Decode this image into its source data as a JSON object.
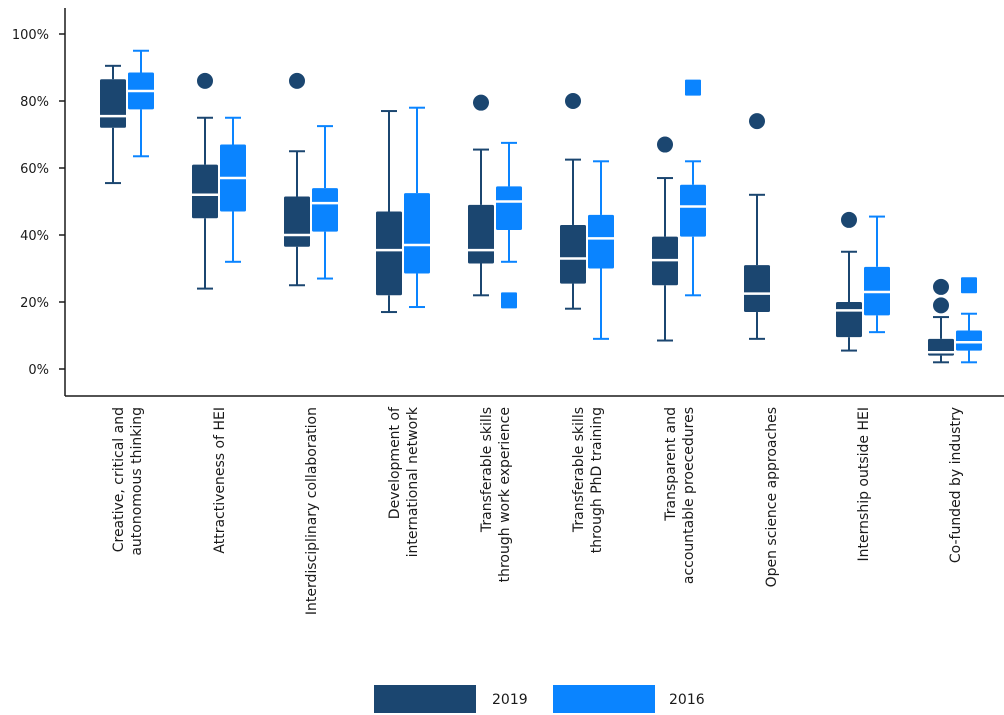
{
  "colors": {
    "y2019": "#1b4670",
    "y2016": "#0a84ff",
    "median": "#ffffff",
    "axis": "#1a1a1a"
  },
  "legend": {
    "items": [
      {
        "label": "2019",
        "color": "#1b4670"
      },
      {
        "label": "2016",
        "color": "#0a84ff"
      }
    ]
  },
  "chart_data": {
    "type": "boxplot",
    "title": "",
    "xlabel": "",
    "ylabel": "",
    "ylim": [
      -8,
      108
    ],
    "y_ticks": [
      0,
      20,
      40,
      60,
      80,
      100
    ],
    "y_tick_labels": [
      "0%",
      "20%",
      "40%",
      "60%",
      "80%",
      "100%"
    ],
    "legend_position": "bottom-center",
    "categories": [
      [
        "Creative, critical and",
        "autonomous thinking"
      ],
      [
        "Attractiveness of HEI"
      ],
      [
        "Interdisciplinary collaboration"
      ],
      [
        "Development of",
        "international network"
      ],
      [
        "Transferable skills",
        "through work experience"
      ],
      [
        "Transferable skills",
        "through PhD training"
      ],
      [
        "Transparent and",
        "accountable proecedures"
      ],
      [
        "Open science approaches"
      ],
      [
        "Internship outside HEI"
      ],
      [
        "Co-funded by industry"
      ]
    ],
    "series": [
      {
        "name": "2019",
        "boxes": [
          {
            "min": 55.5,
            "q1": 72,
            "median": 75.5,
            "q3": 86.5,
            "max": 90.5,
            "outliers": [],
            "outlier_shape": "circle"
          },
          {
            "min": 24,
            "q1": 45,
            "median": 52,
            "q3": 61,
            "max": 75,
            "outliers": [
              86
            ],
            "outlier_shape": "circle"
          },
          {
            "min": 25,
            "q1": 36.5,
            "median": 40,
            "q3": 51.5,
            "max": 65,
            "outliers": [
              86
            ],
            "outlier_shape": "circle"
          },
          {
            "min": 17,
            "q1": 22,
            "median": 35.5,
            "q3": 47,
            "max": 77,
            "outliers": [],
            "outlier_shape": "circle"
          },
          {
            "min": 22,
            "q1": 31.5,
            "median": 35.5,
            "q3": 49,
            "max": 65.5,
            "outliers": [
              79.5
            ],
            "outlier_shape": "circle"
          },
          {
            "min": 18,
            "q1": 25.5,
            "median": 33,
            "q3": 43,
            "max": 62.5,
            "outliers": [
              80
            ],
            "outlier_shape": "circle"
          },
          {
            "min": 8.5,
            "q1": 25,
            "median": 32.5,
            "q3": 39.5,
            "max": 57,
            "outliers": [
              67
            ],
            "outlier_shape": "circle"
          },
          {
            "min": 9,
            "q1": 17,
            "median": 22.5,
            "q3": 31,
            "max": 52,
            "outliers": [
              74
            ],
            "outlier_shape": "circle"
          },
          {
            "min": 5.5,
            "q1": 9.5,
            "median": 17.5,
            "q3": 20,
            "max": 35,
            "outliers": [
              44.5
            ],
            "outlier_shape": "circle"
          },
          {
            "min": 2,
            "q1": 4,
            "median": 5,
            "q3": 9,
            "max": 15.5,
            "outliers": [
              19,
              24.5
            ],
            "outlier_shape": "circle"
          }
        ]
      },
      {
        "name": "2016",
        "boxes": [
          {
            "min": 63.5,
            "q1": 77.5,
            "median": 83,
            "q3": 88.5,
            "max": 95,
            "outliers": [],
            "outlier_shape": "square"
          },
          {
            "min": 32,
            "q1": 47,
            "median": 57,
            "q3": 67,
            "max": 75,
            "outliers": [],
            "outlier_shape": "square"
          },
          {
            "min": 27,
            "q1": 41,
            "median": 49.5,
            "q3": 54,
            "max": 72.5,
            "outliers": [],
            "outlier_shape": "square"
          },
          {
            "min": 18.5,
            "q1": 28.5,
            "median": 37,
            "q3": 52.5,
            "max": 78,
            "outliers": [],
            "outlier_shape": "square"
          },
          {
            "min": 32,
            "q1": 41.5,
            "median": 50,
            "q3": 54.5,
            "max": 67.5,
            "outliers": [
              20.5
            ],
            "outlier_shape": "square"
          },
          {
            "min": 9,
            "q1": 30,
            "median": 39,
            "q3": 46,
            "max": 62,
            "outliers": [],
            "outlier_shape": "square"
          },
          {
            "min": 22,
            "q1": 39.5,
            "median": 48.5,
            "q3": 55,
            "max": 62,
            "outliers": [
              84
            ],
            "outlier_shape": "square"
          },
          {
            "min": null,
            "q1": null,
            "median": null,
            "q3": null,
            "max": null,
            "outliers": [],
            "outlier_shape": "square"
          },
          {
            "min": 11,
            "q1": 16,
            "median": 23,
            "q3": 30.5,
            "max": 45.5,
            "outliers": [],
            "outlier_shape": "square"
          },
          {
            "min": 2,
            "q1": 5.5,
            "median": 8,
            "q3": 11.5,
            "max": 16.5,
            "outliers": [
              25
            ],
            "outlier_shape": "square"
          }
        ]
      }
    ]
  }
}
